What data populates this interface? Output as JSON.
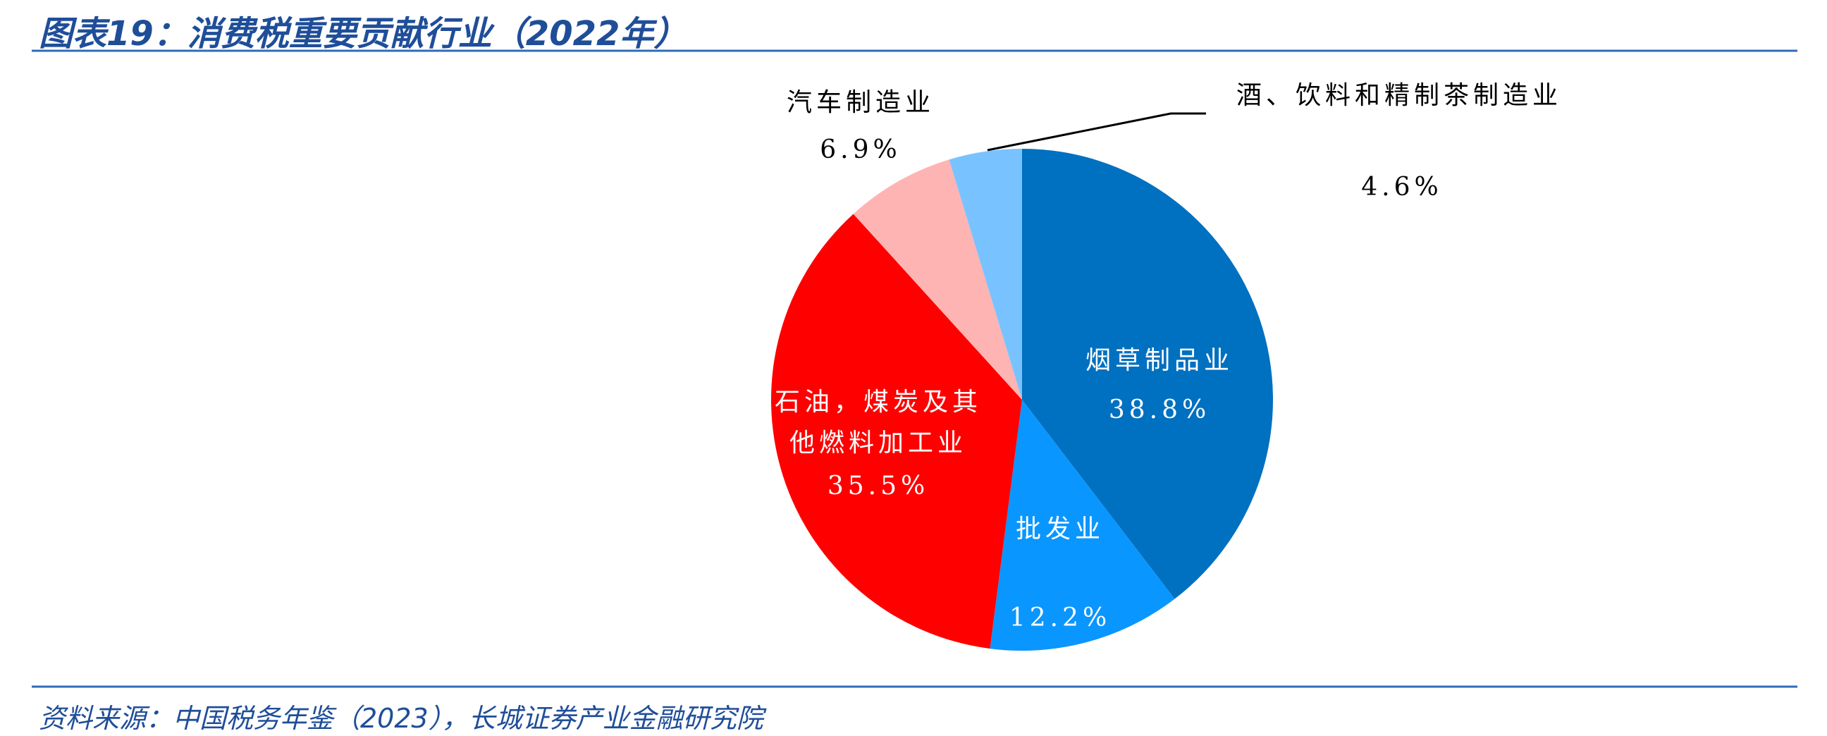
{
  "chart_data": {
    "type": "pie",
    "title": "图表19：消费税重要贡献行业（2022年）",
    "source": "资料来源：中国税务年鉴（2023），长城证券产业金融研究院",
    "categories": [
      "烟草制品业",
      "批发业",
      "石油，煤炭及其他燃料加工业",
      "汽车制造业",
      "酒、饮料和精制茶制造业"
    ],
    "values": [
      38.8,
      12.2,
      35.5,
      6.9,
      4.6
    ],
    "value_labels": [
      "38.8%",
      "12.2%",
      "35.5%",
      "6.9%",
      "4.6%"
    ],
    "colors": [
      "#0070c0",
      "#0a96ff",
      "#ff0000",
      "#ffb4b4",
      "#78c3ff"
    ]
  }
}
